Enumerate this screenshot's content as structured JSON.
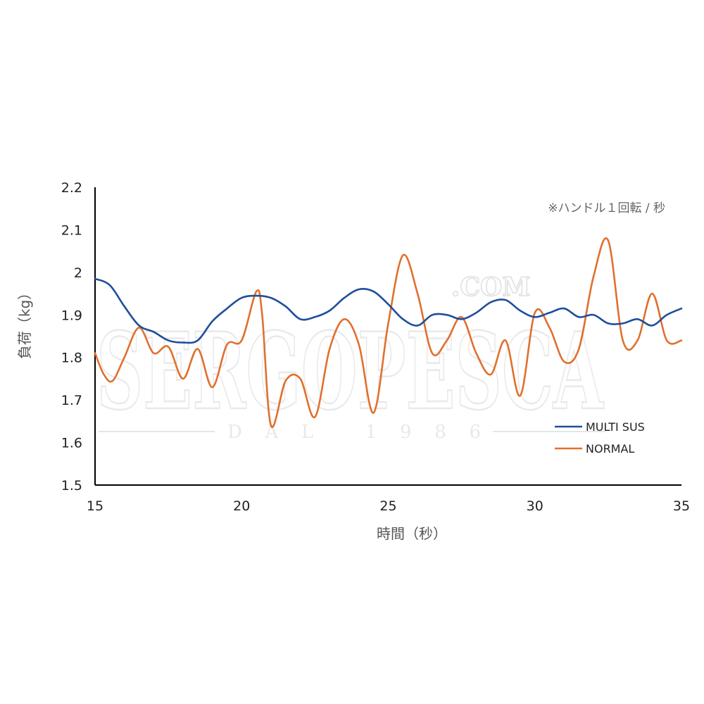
{
  "chart_data": {
    "type": "line",
    "title": "",
    "note": "※ハンドル１回転 / 秒",
    "xlabel": "時間（秒）",
    "ylabel": "負荷（kg）",
    "xlim": [
      15,
      35
    ],
    "ylim": [
      1.5,
      2.2
    ],
    "x_ticks": [
      15,
      20,
      25,
      30,
      35
    ],
    "y_ticks": [
      1.5,
      1.6,
      1.7,
      1.8,
      1.9,
      2.0,
      2.1,
      2.2
    ],
    "x_tick_labels": [
      "15",
      "20",
      "25",
      "30",
      "35"
    ],
    "y_tick_labels": [
      "1.5",
      "1.6",
      "1.7",
      "1.8",
      "1.9",
      "2",
      "2.1",
      "2.2"
    ],
    "grid": false,
    "legend_position": "bottom-right",
    "series": [
      {
        "name": "MULTI SUS",
        "color": "#1f4e9c",
        "x": [
          15,
          15.5,
          16,
          16.5,
          17,
          17.5,
          18,
          18.5,
          19,
          19.5,
          20,
          20.5,
          21,
          21.5,
          22,
          22.5,
          23,
          23.5,
          24,
          24.5,
          25,
          25.5,
          26,
          26.5,
          27,
          27.5,
          28,
          28.5,
          29,
          29.5,
          30,
          30.5,
          31,
          31.5,
          32,
          32.5,
          33,
          33.5,
          34,
          34.5,
          35
        ],
        "y": [
          1.985,
          1.97,
          1.92,
          1.875,
          1.86,
          1.84,
          1.835,
          1.84,
          1.885,
          1.915,
          1.94,
          1.945,
          1.94,
          1.92,
          1.89,
          1.895,
          1.91,
          1.94,
          1.96,
          1.955,
          1.925,
          1.89,
          1.875,
          1.9,
          1.9,
          1.89,
          1.905,
          1.93,
          1.935,
          1.91,
          1.895,
          1.905,
          1.915,
          1.895,
          1.9,
          1.88,
          1.88,
          1.89,
          1.875,
          1.9,
          1.915
        ]
      },
      {
        "name": "NORMAL",
        "color": "#e0702e",
        "x": [
          15,
          15.3,
          15.6,
          16,
          16.5,
          17,
          17.5,
          18,
          18.5,
          19,
          19.5,
          20,
          20.5,
          20.7,
          21,
          21.5,
          22,
          22.5,
          23,
          23.5,
          24,
          24.5,
          25,
          25.5,
          26,
          26.5,
          27,
          27.5,
          28,
          28.5,
          29,
          29.5,
          30,
          30.5,
          31,
          31.5,
          32,
          32.5,
          33,
          33.5,
          34,
          34.5,
          35
        ],
        "y": [
          1.81,
          1.76,
          1.745,
          1.8,
          1.87,
          1.81,
          1.825,
          1.75,
          1.82,
          1.73,
          1.83,
          1.84,
          1.955,
          1.9,
          1.64,
          1.745,
          1.75,
          1.66,
          1.82,
          1.89,
          1.83,
          1.67,
          1.88,
          2.04,
          1.95,
          1.81,
          1.84,
          1.895,
          1.81,
          1.76,
          1.84,
          1.71,
          1.905,
          1.87,
          1.79,
          1.82,
          1.99,
          2.075,
          1.84,
          1.84,
          1.95,
          1.84,
          1.84
        ]
      }
    ]
  },
  "watermark": {
    "main": "SERGOPESCA",
    "domain": ".COM",
    "since": "DAL 1986"
  }
}
